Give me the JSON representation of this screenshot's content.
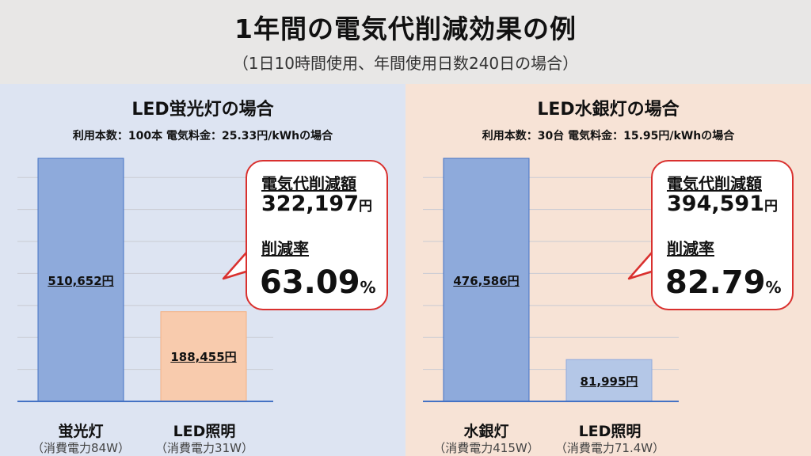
{
  "header": {
    "title": "1年間の電気代削減効果の例",
    "subtitle": "（1日10時間使用、年間使用日数240日の場合）"
  },
  "colors": {
    "blue_bar": "#8eaadb",
    "orange_bar": "#f8cbad",
    "light_blue_bar": "#b4c7e7",
    "accent_red": "#d9302e",
    "left_bg": "#dde4f2",
    "right_bg": "#f7e3d6"
  },
  "panels": [
    {
      "title": "LED蛍光灯の場合",
      "subtitle": "利用本数：100本 電気料金：25.33円/kWhの場合",
      "bubble": {
        "saving_label": "電気代削減額",
        "saving_amount": "322,197",
        "saving_unit": "円",
        "rate_label": "削減率",
        "rate_value": "63.09",
        "rate_unit": "%"
      }
    },
    {
      "title": "LED水銀灯の場合",
      "subtitle": "利用本数：30台 電気料金：15.95円/kWhの場合",
      "bubble": {
        "saving_label": "電気代削減額",
        "saving_amount": "394,591",
        "saving_unit": "円",
        "rate_label": "削減率",
        "rate_value": "82.79",
        "rate_unit": "%"
      }
    }
  ],
  "chart_data": [
    {
      "type": "bar",
      "categories": [
        "蛍光灯",
        "LED照明"
      ],
      "category_notes": [
        "（消費電力84W）",
        "（消費電力31W）"
      ],
      "values": [
        510652,
        188455
      ],
      "value_labels": [
        "510,652円",
        "188,455円"
      ],
      "bar_colors": [
        "#8eaadb",
        "#f8cbad"
      ],
      "ylim": [
        0,
        510652
      ],
      "grid": true,
      "title": "",
      "xlabel": "",
      "ylabel": ""
    },
    {
      "type": "bar",
      "categories": [
        "水銀灯",
        "LED照明"
      ],
      "category_notes": [
        "（消費電力415W）",
        "（消費電力71.4W）"
      ],
      "values": [
        476586,
        81995
      ],
      "value_labels": [
        "476,586円",
        "81,995円"
      ],
      "bar_colors": [
        "#8eaadb",
        "#b4c7e7"
      ],
      "ylim": [
        0,
        476586
      ],
      "grid": true,
      "title": "",
      "xlabel": "",
      "ylabel": ""
    }
  ]
}
